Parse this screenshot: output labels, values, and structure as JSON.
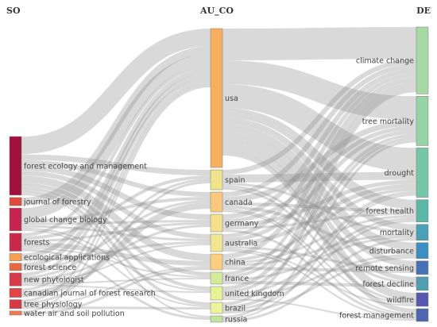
{
  "columns": [
    {
      "id": "so",
      "title": "SO"
    },
    {
      "id": "au_co",
      "title": "AU_CO"
    },
    {
      "id": "de",
      "title": "DE"
    }
  ],
  "nodes": {
    "so": [
      {
        "label": "forest ecology and management",
        "value": 72,
        "color": "#a1113f"
      },
      {
        "label": "journal of forestry",
        "value": 10,
        "color": "#dd4b3c"
      },
      {
        "label": "global change biology",
        "value": 28,
        "color": "#c4244d"
      },
      {
        "label": "forests",
        "value": 22,
        "color": "#c72a4b"
      },
      {
        "label": "ecological applications",
        "value": 9,
        "color": "#f4a24f"
      },
      {
        "label": "forest science",
        "value": 9,
        "color": "#e9683f"
      },
      {
        "label": "new phytologist",
        "value": 16,
        "color": "#d63a4b"
      },
      {
        "label": "canadian journal of forest research",
        "value": 11,
        "color": "#e14545"
      },
      {
        "label": "tree physiology",
        "value": 11,
        "color": "#d33a45"
      },
      {
        "label": "water air and soil pollution",
        "value": 5,
        "color": "#f07a4b"
      }
    ],
    "au_co": [
      {
        "label": "usa",
        "value": 175,
        "color": "#f6ae5f"
      },
      {
        "label": "spain",
        "value": 25,
        "color": "#f1e28c"
      },
      {
        "label": "canada",
        "value": 25,
        "color": "#fbc97c"
      },
      {
        "label": "germany",
        "value": 22,
        "color": "#f2e08c"
      },
      {
        "label": "australia",
        "value": 22,
        "color": "#f0e690"
      },
      {
        "label": "china",
        "value": 20,
        "color": "#fcce7e"
      },
      {
        "label": "france",
        "value": 15,
        "color": "#d4ea9a"
      },
      {
        "label": "united kingdom",
        "value": 17,
        "color": "#e6f298"
      },
      {
        "label": "brazil",
        "value": 14,
        "color": "#ecf39a"
      },
      {
        "label": "russia",
        "value": 8,
        "color": "#c4e29f"
      }
    ],
    "de": [
      {
        "label": "climate change",
        "value": 84,
        "color": "#a7d9a5"
      },
      {
        "label": "tree mortality",
        "value": 62,
        "color": "#96d3a6"
      },
      {
        "label": "drought",
        "value": 62,
        "color": "#78c6a8"
      },
      {
        "label": "forest health",
        "value": 28,
        "color": "#5cb7a7"
      },
      {
        "label": "mortality",
        "value": 20,
        "color": "#4aa0b6"
      },
      {
        "label": "disturbance",
        "value": 20,
        "color": "#3c8ec3"
      },
      {
        "label": "remote sensing",
        "value": 17,
        "color": "#4772b6"
      },
      {
        "label": "forest decline",
        "value": 17,
        "color": "#519eb1"
      },
      {
        "label": "wildfire",
        "value": 17,
        "color": "#5657b0"
      },
      {
        "label": "forest management",
        "value": 16,
        "color": "#4d66ae"
      }
    ]
  },
  "links": [
    {
      "from": [
        "so",
        0
      ],
      "to": [
        "au_co",
        0
      ],
      "value": 22
    },
    {
      "from": [
        "so",
        0
      ],
      "to": [
        "au_co",
        1
      ],
      "value": 7
    },
    {
      "from": [
        "so",
        0
      ],
      "to": [
        "au_co",
        2
      ],
      "value": 6
    },
    {
      "from": [
        "so",
        0
      ],
      "to": [
        "au_co",
        3
      ],
      "value": 7
    },
    {
      "from": [
        "so",
        0
      ],
      "to": [
        "au_co",
        4
      ],
      "value": 6
    },
    {
      "from": [
        "so",
        0
      ],
      "to": [
        "au_co",
        5
      ],
      "value": 9
    },
    {
      "from": [
        "so",
        0
      ],
      "to": [
        "au_co",
        6
      ],
      "value": 5
    },
    {
      "from": [
        "so",
        0
      ],
      "to": [
        "au_co",
        7
      ],
      "value": 4
    },
    {
      "from": [
        "so",
        0
      ],
      "to": [
        "au_co",
        8
      ],
      "value": 4
    },
    {
      "from": [
        "so",
        0
      ],
      "to": [
        "au_co",
        9
      ],
      "value": 2
    },
    {
      "from": [
        "so",
        1
      ],
      "to": [
        "au_co",
        0
      ],
      "value": 10
    },
    {
      "from": [
        "so",
        2
      ],
      "to": [
        "au_co",
        0
      ],
      "value": 14
    },
    {
      "from": [
        "so",
        2
      ],
      "to": [
        "au_co",
        2
      ],
      "value": 4
    },
    {
      "from": [
        "so",
        2
      ],
      "to": [
        "au_co",
        3
      ],
      "value": 3
    },
    {
      "from": [
        "so",
        2
      ],
      "to": [
        "au_co",
        4
      ],
      "value": 3
    },
    {
      "from": [
        "so",
        2
      ],
      "to": [
        "au_co",
        7
      ],
      "value": 2
    },
    {
      "from": [
        "so",
        2
      ],
      "to": [
        "au_co",
        8
      ],
      "value": 2
    },
    {
      "from": [
        "so",
        3
      ],
      "to": [
        "au_co",
        0
      ],
      "value": 4
    },
    {
      "from": [
        "so",
        3
      ],
      "to": [
        "au_co",
        1
      ],
      "value": 4
    },
    {
      "from": [
        "so",
        3
      ],
      "to": [
        "au_co",
        3
      ],
      "value": 3
    },
    {
      "from": [
        "so",
        3
      ],
      "to": [
        "au_co",
        5
      ],
      "value": 6
    },
    {
      "from": [
        "so",
        3
      ],
      "to": [
        "au_co",
        6
      ],
      "value": 2
    },
    {
      "from": [
        "so",
        3
      ],
      "to": [
        "au_co",
        9
      ],
      "value": 3
    },
    {
      "from": [
        "so",
        4
      ],
      "to": [
        "au_co",
        0
      ],
      "value": 6
    },
    {
      "from": [
        "so",
        4
      ],
      "to": [
        "au_co",
        4
      ],
      "value": 3
    },
    {
      "from": [
        "so",
        5
      ],
      "to": [
        "au_co",
        0
      ],
      "value": 6
    },
    {
      "from": [
        "so",
        5
      ],
      "to": [
        "au_co",
        2
      ],
      "value": 3
    },
    {
      "from": [
        "so",
        6
      ],
      "to": [
        "au_co",
        0
      ],
      "value": 4
    },
    {
      "from": [
        "so",
        6
      ],
      "to": [
        "au_co",
        1
      ],
      "value": 3
    },
    {
      "from": [
        "so",
        6
      ],
      "to": [
        "au_co",
        3
      ],
      "value": 3
    },
    {
      "from": [
        "so",
        6
      ],
      "to": [
        "au_co",
        4
      ],
      "value": 2
    },
    {
      "from": [
        "so",
        6
      ],
      "to": [
        "au_co",
        6
      ],
      "value": 2
    },
    {
      "from": [
        "so",
        6
      ],
      "to": [
        "au_co",
        7
      ],
      "value": 2
    },
    {
      "from": [
        "so",
        7
      ],
      "to": [
        "au_co",
        0
      ],
      "value": 3
    },
    {
      "from": [
        "so",
        7
      ],
      "to": [
        "au_co",
        2
      ],
      "value": 8
    },
    {
      "from": [
        "so",
        8
      ],
      "to": [
        "au_co",
        0
      ],
      "value": 3
    },
    {
      "from": [
        "so",
        8
      ],
      "to": [
        "au_co",
        1
      ],
      "value": 3
    },
    {
      "from": [
        "so",
        8
      ],
      "to": [
        "au_co",
        5
      ],
      "value": 2
    },
    {
      "from": [
        "so",
        8
      ],
      "to": [
        "au_co",
        8
      ],
      "value": 3
    },
    {
      "from": [
        "so",
        9
      ],
      "to": [
        "au_co",
        0
      ],
      "value": 2
    },
    {
      "from": [
        "so",
        9
      ],
      "to": [
        "au_co",
        5
      ],
      "value": 3
    },
    {
      "from": [
        "au_co",
        0
      ],
      "to": [
        "de",
        0
      ],
      "value": 40
    },
    {
      "from": [
        "au_co",
        0
      ],
      "to": [
        "de",
        1
      ],
      "value": 30
    },
    {
      "from": [
        "au_co",
        0
      ],
      "to": [
        "de",
        2
      ],
      "value": 30
    },
    {
      "from": [
        "au_co",
        0
      ],
      "to": [
        "de",
        3
      ],
      "value": 12
    },
    {
      "from": [
        "au_co",
        0
      ],
      "to": [
        "de",
        4
      ],
      "value": 8
    },
    {
      "from": [
        "au_co",
        0
      ],
      "to": [
        "de",
        5
      ],
      "value": 10
    },
    {
      "from": [
        "au_co",
        0
      ],
      "to": [
        "de",
        6
      ],
      "value": 8
    },
    {
      "from": [
        "au_co",
        0
      ],
      "to": [
        "de",
        7
      ],
      "value": 6
    },
    {
      "from": [
        "au_co",
        0
      ],
      "to": [
        "de",
        8
      ],
      "value": 10
    },
    {
      "from": [
        "au_co",
        0
      ],
      "to": [
        "de",
        9
      ],
      "value": 6
    },
    {
      "from": [
        "au_co",
        1
      ],
      "to": [
        "de",
        0
      ],
      "value": 6
    },
    {
      "from": [
        "au_co",
        1
      ],
      "to": [
        "de",
        2
      ],
      "value": 10
    },
    {
      "from": [
        "au_co",
        1
      ],
      "to": [
        "de",
        4
      ],
      "value": 3
    },
    {
      "from": [
        "au_co",
        1
      ],
      "to": [
        "de",
        7
      ],
      "value": 3
    },
    {
      "from": [
        "au_co",
        1
      ],
      "to": [
        "de",
        8
      ],
      "value": 3
    },
    {
      "from": [
        "au_co",
        2
      ],
      "to": [
        "de",
        0
      ],
      "value": 6
    },
    {
      "from": [
        "au_co",
        2
      ],
      "to": [
        "de",
        1
      ],
      "value": 7
    },
    {
      "from": [
        "au_co",
        2
      ],
      "to": [
        "de",
        3
      ],
      "value": 4
    },
    {
      "from": [
        "au_co",
        2
      ],
      "to": [
        "de",
        5
      ],
      "value": 4
    },
    {
      "from": [
        "au_co",
        2
      ],
      "to": [
        "de",
        8
      ],
      "value": 2
    },
    {
      "from": [
        "au_co",
        2
      ],
      "to": [
        "de",
        9
      ],
      "value": 2
    },
    {
      "from": [
        "au_co",
        3
      ],
      "to": [
        "de",
        0
      ],
      "value": 6
    },
    {
      "from": [
        "au_co",
        3
      ],
      "to": [
        "de",
        1
      ],
      "value": 5
    },
    {
      "from": [
        "au_co",
        3
      ],
      "to": [
        "de",
        2
      ],
      "value": 5
    },
    {
      "from": [
        "au_co",
        3
      ],
      "to": [
        "de",
        3
      ],
      "value": 3
    },
    {
      "from": [
        "au_co",
        3
      ],
      "to": [
        "de",
        9
      ],
      "value": 3
    },
    {
      "from": [
        "au_co",
        4
      ],
      "to": [
        "de",
        0
      ],
      "value": 5
    },
    {
      "from": [
        "au_co",
        4
      ],
      "to": [
        "de",
        1
      ],
      "value": 5
    },
    {
      "from": [
        "au_co",
        4
      ],
      "to": [
        "de",
        2
      ],
      "value": 5
    },
    {
      "from": [
        "au_co",
        4
      ],
      "to": [
        "de",
        6
      ],
      "value": 3
    },
    {
      "from": [
        "au_co",
        4
      ],
      "to": [
        "de",
        8
      ],
      "value": 2
    },
    {
      "from": [
        "au_co",
        4
      ],
      "to": [
        "de",
        9
      ],
      "value": 2
    },
    {
      "from": [
        "au_co",
        5
      ],
      "to": [
        "de",
        0
      ],
      "value": 6
    },
    {
      "from": [
        "au_co",
        5
      ],
      "to": [
        "de",
        2
      ],
      "value": 4
    },
    {
      "from": [
        "au_co",
        5
      ],
      "to": [
        "de",
        3
      ],
      "value": 3
    },
    {
      "from": [
        "au_co",
        5
      ],
      "to": [
        "de",
        4
      ],
      "value": 3
    },
    {
      "from": [
        "au_co",
        5
      ],
      "to": [
        "de",
        6
      ],
      "value": 4
    },
    {
      "from": [
        "au_co",
        6
      ],
      "to": [
        "de",
        0
      ],
      "value": 4
    },
    {
      "from": [
        "au_co",
        6
      ],
      "to": [
        "de",
        1
      ],
      "value": 4
    },
    {
      "from": [
        "au_co",
        6
      ],
      "to": [
        "de",
        4
      ],
      "value": 3
    },
    {
      "from": [
        "au_co",
        6
      ],
      "to": [
        "de",
        7
      ],
      "value": 4
    },
    {
      "from": [
        "au_co",
        7
      ],
      "to": [
        "de",
        0
      ],
      "value": 5
    },
    {
      "from": [
        "au_co",
        7
      ],
      "to": [
        "de",
        1
      ],
      "value": 4
    },
    {
      "from": [
        "au_co",
        7
      ],
      "to": [
        "de",
        3
      ],
      "value": 3
    },
    {
      "from": [
        "au_co",
        7
      ],
      "to": [
        "de",
        5
      ],
      "value": 3
    },
    {
      "from": [
        "au_co",
        7
      ],
      "to": [
        "de",
        9
      ],
      "value": 2
    },
    {
      "from": [
        "au_co",
        8
      ],
      "to": [
        "de",
        0
      ],
      "value": 4
    },
    {
      "from": [
        "au_co",
        8
      ],
      "to": [
        "de",
        2
      ],
      "value": 4
    },
    {
      "from": [
        "au_co",
        8
      ],
      "to": [
        "de",
        3
      ],
      "value": 3
    },
    {
      "from": [
        "au_co",
        8
      ],
      "to": [
        "de",
        5
      ],
      "value": 3
    },
    {
      "from": [
        "au_co",
        9
      ],
      "to": [
        "de",
        1
      ],
      "value": 3
    },
    {
      "from": [
        "au_co",
        9
      ],
      "to": [
        "de",
        2
      ],
      "value": 2
    },
    {
      "from": [
        "au_co",
        9
      ],
      "to": [
        "de",
        4
      ],
      "value": 3
    }
  ]
}
